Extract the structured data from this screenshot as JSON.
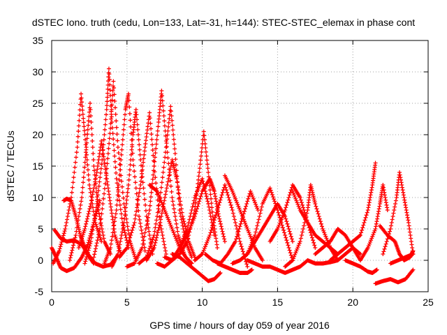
{
  "chart_data": {
    "type": "scatter",
    "title": "dSTEC Iono. truth (cedu, Lon=133, Lat=-31, h=144): STEC-STEC_elemax in phase cont",
    "xlabel": "GPS time / hours of day 059 of year 2016",
    "ylabel": "dSTEC  / TECUs",
    "xlim": [
      0,
      25
    ],
    "ylim": [
      -5,
      35
    ],
    "xticks": [
      "0",
      "5",
      "10",
      "15",
      "20",
      "25"
    ],
    "yticks": [
      "-5",
      "0",
      "5",
      "10",
      "15",
      "20",
      "25",
      "30",
      "35"
    ],
    "grid": true,
    "legend": "none",
    "marker": "+",
    "color": "#ff0000",
    "series": [
      {
        "x": [
          0.0,
          0.3,
          0.6,
          1.0,
          1.5,
          2.0,
          2.4,
          2.8,
          3.2
        ],
        "y": [
          2,
          0.5,
          -1.2,
          -1.7,
          -1.2,
          0.5,
          2.5,
          6,
          9.5
        ]
      },
      {
        "x": [
          0.1,
          0.5,
          0.9,
          1.3,
          1.7,
          1.95,
          2.2,
          2.5,
          2.9,
          3.3
        ],
        "y": [
          -0.5,
          1.5,
          5,
          10,
          18,
          26.5,
          20,
          12,
          6,
          3
        ]
      },
      {
        "x": [
          0.2,
          0.6,
          1.0,
          1.5,
          2.0,
          2.4,
          2.9,
          3.4,
          3.9,
          4.3
        ],
        "y": [
          4.8,
          3.5,
          3,
          3.2,
          2.5,
          1,
          -0.5,
          -1,
          -0.7,
          0.5
        ]
      },
      {
        "x": [
          0.8,
          1.0,
          1.3,
          1.6,
          1.9,
          2.2,
          2.5,
          2.8
        ],
        "y": [
          9.5,
          9.8,
          9.5,
          7,
          4,
          2,
          0.5,
          -0.5
        ]
      },
      {
        "x": [
          1.2,
          1.6,
          2.0,
          2.3,
          2.55,
          2.8,
          3.1,
          3.5,
          3.9
        ],
        "y": [
          0,
          4,
          10,
          18,
          25,
          15,
          8,
          3,
          1
        ]
      },
      {
        "x": [
          1.8,
          2.2,
          2.6,
          3.0,
          3.3,
          3.6,
          3.9,
          4.2,
          4.6
        ],
        "y": [
          2,
          5,
          9,
          14,
          19,
          14,
          9,
          4,
          1
        ]
      },
      {
        "x": [
          2.2,
          2.6,
          3.0,
          3.35,
          3.65,
          3.8,
          4.0,
          4.3,
          4.7,
          5.1
        ],
        "y": [
          -0.5,
          3,
          9,
          16,
          24,
          30.5,
          22,
          13,
          6,
          2
        ]
      },
      {
        "x": [
          2.8,
          3.2,
          3.6,
          3.9,
          4.1,
          4.4,
          4.8,
          5.2,
          5.6
        ],
        "y": [
          0.5,
          5,
          13,
          21,
          28.5,
          18,
          9,
          3,
          0
        ]
      },
      {
        "x": [
          3.5,
          3.9,
          4.3,
          4.6,
          4.9,
          5.1,
          5.4,
          5.8,
          6.2
        ],
        "y": [
          -0.5,
          2,
          8,
          16,
          24,
          26.5,
          16,
          7,
          1.5
        ]
      },
      {
        "x": [
          4.0,
          4.4,
          4.8,
          5.1,
          5.4,
          5.6,
          5.9,
          6.3,
          6.7
        ],
        "y": [
          -1,
          1,
          6,
          12,
          20,
          24,
          16,
          7,
          1
        ]
      },
      {
        "x": [
          4.5,
          5.0,
          5.5,
          5.9,
          6.2,
          6.5,
          6.8,
          7.2,
          7.6
        ],
        "y": [
          0.5,
          2,
          6,
          12,
          18,
          23.5,
          15,
          6,
          1
        ]
      },
      {
        "x": [
          5.0,
          5.5,
          6.0,
          6.5,
          6.8,
          7.1,
          7.3,
          7.6,
          8.0,
          8.4,
          8.8
        ],
        "y": [
          -1,
          -0.5,
          2,
          8,
          15,
          22,
          27,
          19,
          10,
          4,
          1
        ]
      },
      {
        "x": [
          5.8,
          6.3,
          6.8,
          7.2,
          7.6,
          7.9,
          8.2,
          8.5,
          8.9,
          9.3
        ],
        "y": [
          -0.5,
          0.5,
          4,
          10,
          18,
          24.5,
          17,
          8,
          3,
          0.5
        ]
      },
      {
        "x": [
          6.3,
          6.8,
          7.2,
          7.6,
          8.0,
          8.3,
          8.7,
          9.1,
          9.5
        ],
        "y": [
          0,
          2,
          6,
          11,
          16,
          13,
          7,
          3,
          0.5
        ]
      },
      {
        "x": [
          6.5,
          7.0,
          7.5,
          8.0,
          8.5,
          8.9,
          9.3
        ],
        "y": [
          12,
          11,
          8,
          5,
          2,
          0.5,
          -0.5
        ]
      },
      {
        "x": [
          7.0,
          7.5,
          8.0,
          8.5,
          9.0,
          9.5,
          10.0,
          10.4,
          10.8
        ],
        "y": [
          -0.5,
          -1,
          0,
          2,
          5,
          10,
          13,
          9,
          4
        ]
      },
      {
        "x": [
          7.5,
          8.0,
          8.5,
          9.0,
          9.5,
          9.8,
          10.1,
          10.4,
          10.7,
          11.0
        ],
        "y": [
          0.5,
          0,
          1,
          3,
          8,
          14,
          20.5,
          14,
          7,
          2
        ]
      },
      {
        "x": [
          8.0,
          8.5,
          9.0,
          9.5,
          10.0,
          10.4,
          10.8,
          11.2
        ],
        "y": [
          1,
          0.5,
          -0.5,
          -1.5,
          -2.5,
          -3.3,
          -3,
          -2
        ]
      },
      {
        "x": [
          8.5,
          9.0,
          9.5,
          10.0,
          10.5,
          10.8,
          11.1,
          11.5
        ],
        "y": [
          2,
          4,
          7,
          11,
          13,
          11,
          7,
          3
        ]
      },
      {
        "x": [
          9.5,
          10.0,
          10.5,
          11.0,
          11.5,
          12.0,
          12.5,
          13.0
        ],
        "y": [
          0,
          1,
          4,
          8,
          12,
          8,
          3,
          -1
        ]
      },
      {
        "x": [
          10.2,
          10.7,
          11.2,
          11.7,
          12.2,
          12.7,
          13.2,
          13.7
        ],
        "y": [
          1,
          0,
          -0.5,
          1,
          3,
          7,
          11,
          8
        ]
      },
      {
        "x": [
          11.0,
          11.5,
          12.0,
          12.5,
          13.0,
          13.3
        ],
        "y": [
          -0.5,
          -1,
          -1.5,
          -2,
          -2,
          -1.5
        ]
      },
      {
        "x": [
          11.5,
          12.0,
          12.5,
          13.0,
          13.5,
          14.0
        ],
        "y": [
          13.5,
          11,
          8,
          5,
          2,
          0
        ]
      },
      {
        "x": [
          12.0,
          12.5,
          13.0,
          13.5,
          14.0,
          14.5,
          15.0,
          15.5,
          16.0
        ],
        "y": [
          -0.5,
          0,
          1,
          3,
          5,
          7,
          9,
          7,
          3
        ]
      },
      {
        "x": [
          12.5,
          13.0,
          13.5,
          14.0,
          14.5,
          15.0,
          15.5,
          16.0
        ],
        "y": [
          0,
          1,
          4,
          9,
          11.5,
          8,
          4,
          0
        ]
      },
      {
        "x": [
          13.0,
          13.5,
          14.0,
          14.5,
          15.0,
          15.5,
          16.0,
          16.5,
          17.0
        ],
        "y": [
          0,
          -0.5,
          -1,
          -1,
          -1.5,
          -2,
          -1.5,
          -1,
          0
        ]
      },
      {
        "x": [
          14.5,
          15.0,
          15.5,
          16.0,
          16.5,
          17.0,
          17.5
        ],
        "y": [
          3,
          5,
          8,
          12,
          10,
          6,
          2
        ]
      },
      {
        "x": [
          15.5,
          16.0,
          16.5,
          17.0,
          17.2,
          17.5,
          18.0,
          18.5,
          19.0
        ],
        "y": [
          -1,
          0,
          3,
          8,
          12,
          9,
          5,
          2,
          0
        ]
      },
      {
        "x": [
          16.0,
          16.5,
          17.0,
          17.5,
          18.0,
          18.5,
          19.0
        ],
        "y": [
          11,
          8,
          6,
          4,
          3,
          2,
          1
        ]
      },
      {
        "x": [
          17.0,
          17.5,
          18.0,
          18.5,
          19.0,
          19.5,
          20.0,
          20.5
        ],
        "y": [
          0,
          -0.5,
          -0.5,
          -0.3,
          0,
          1,
          2,
          0
        ]
      },
      {
        "x": [
          17.5,
          18.0,
          18.5,
          19.0,
          19.5,
          20.0,
          20.5
        ],
        "y": [
          1,
          2,
          3,
          5,
          4,
          2,
          1
        ]
      },
      {
        "x": [
          18.5,
          19.0,
          19.5,
          20.0,
          20.5,
          21.0,
          21.3,
          21.5
        ],
        "y": [
          0,
          1,
          2,
          3,
          4,
          8,
          12,
          15.5
        ]
      },
      {
        "x": [
          19.5,
          20.0,
          20.5,
          21.0,
          21.3,
          21.6
        ],
        "y": [
          0,
          -0.5,
          -1,
          -1.8,
          -2,
          -1.5
        ]
      },
      {
        "x": [
          20.5,
          21.0,
          21.5,
          21.8,
          22.0,
          22.3
        ],
        "y": [
          0,
          2,
          5,
          9,
          12,
          8
        ]
      },
      {
        "x": [
          21.5,
          22.0,
          22.5,
          23.0,
          23.5,
          24.0
        ],
        "y": [
          -3.7,
          -3.3,
          -3,
          -3.5,
          -3,
          -1.5
        ]
      },
      {
        "x": [
          21.8,
          22.3,
          22.8,
          23.1,
          23.4,
          23.8,
          24.0
        ],
        "y": [
          5.5,
          4,
          3,
          1,
          0,
          0.5,
          1.5
        ]
      },
      {
        "x": [
          22.0,
          22.5,
          22.9,
          23.1,
          23.4,
          23.7,
          24.0
        ],
        "y": [
          1,
          5,
          10,
          14,
          10,
          6,
          1
        ]
      },
      {
        "x": [
          22.5,
          23.0,
          23.5,
          24.0
        ],
        "y": [
          -0.5,
          0,
          0.5,
          1
        ]
      }
    ]
  }
}
